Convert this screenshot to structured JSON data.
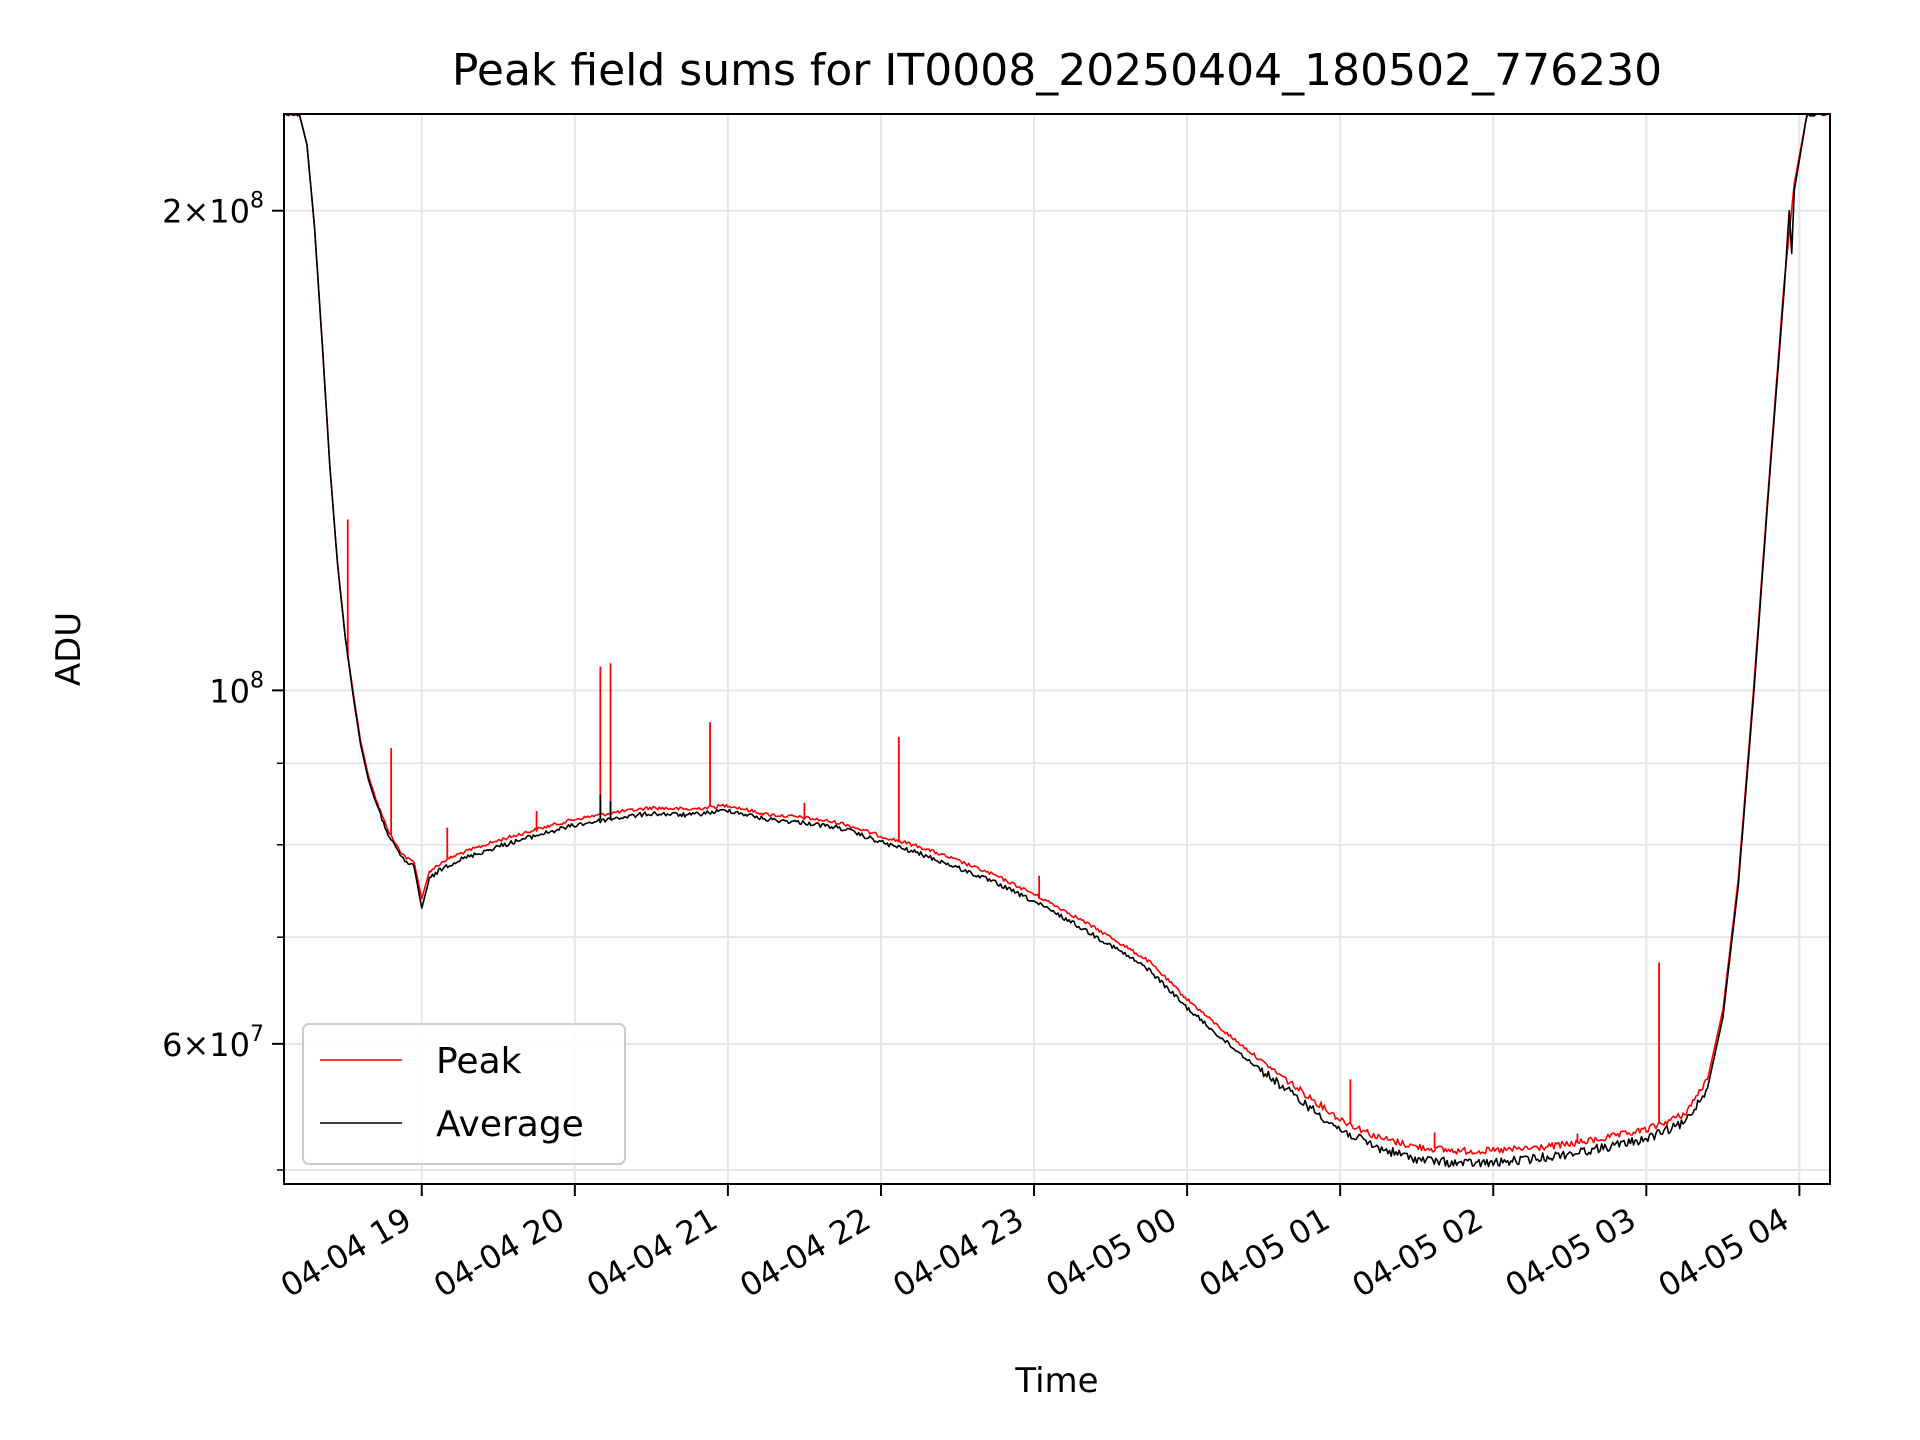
{
  "chart_data": {
    "type": "line",
    "title": "Peak field sums for IT0008_20250404_180502_776230",
    "xlabel": "Time",
    "ylabel": "ADU",
    "yscale": "log",
    "ylim": [
      49000000,
      230000000
    ],
    "xlim": [
      "2025-04-04 18:06",
      "2025-04-05 04:12"
    ],
    "grid": true,
    "legend_position": "lower-left",
    "x_ticks": [
      {
        "t": "2025-04-04 19:00",
        "label": "04-04 19"
      },
      {
        "t": "2025-04-04 20:00",
        "label": "04-04 20"
      },
      {
        "t": "2025-04-04 21:00",
        "label": "04-04 21"
      },
      {
        "t": "2025-04-04 22:00",
        "label": "04-04 22"
      },
      {
        "t": "2025-04-04 23:00",
        "label": "04-04 23"
      },
      {
        "t": "2025-04-05 00:00",
        "label": "04-05 00"
      },
      {
        "t": "2025-04-05 01:00",
        "label": "04-05 01"
      },
      {
        "t": "2025-04-05 02:00",
        "label": "04-05 02"
      },
      {
        "t": "2025-04-05 03:00",
        "label": "04-05 03"
      },
      {
        "t": "2025-04-05 04:00",
        "label": "04-05 04"
      }
    ],
    "y_ticks": [
      {
        "value": 60000000,
        "base": "6",
        "exp": "7"
      },
      {
        "value": 100000000,
        "base": "",
        "exp": "8"
      },
      {
        "value": 200000000,
        "base": "2",
        "exp": "8"
      }
    ],
    "y_minor_ticks": [
      50000000,
      70000000,
      80000000,
      90000000
    ],
    "series": [
      {
        "name": "Peak",
        "color": "#ff0000",
        "points": [
          [
            "2025-04-04 18:06",
            230000000
          ],
          [
            "2025-04-04 18:12",
            230000000
          ],
          [
            "2025-04-04 18:15",
            220000000
          ],
          [
            "2025-04-04 18:18",
            195000000
          ],
          [
            "2025-04-04 18:21",
            165000000
          ],
          [
            "2025-04-04 18:24",
            138000000
          ],
          [
            "2025-04-04 18:27",
            120000000
          ],
          [
            "2025-04-04 18:30",
            108000000
          ],
          [
            "2025-04-04 18:33",
            100000000
          ],
          [
            "2025-04-04 18:36",
            93000000
          ],
          [
            "2025-04-04 18:39",
            88500000
          ],
          [
            "2025-04-04 18:42",
            85500000
          ],
          [
            "2025-04-04 18:45",
            83000000
          ],
          [
            "2025-04-04 18:48",
            81000000
          ],
          [
            "2025-04-04 18:51",
            79500000
          ],
          [
            "2025-04-04 18:54",
            78500000
          ],
          [
            "2025-04-04 18:57",
            78000000
          ],
          [
            "2025-04-04 19:00",
            74000000
          ],
          [
            "2025-04-04 19:03",
            77000000
          ],
          [
            "2025-04-04 19:09",
            78200000
          ],
          [
            "2025-04-04 19:15",
            79000000
          ],
          [
            "2025-04-04 19:30",
            80500000
          ],
          [
            "2025-04-04 19:45",
            81800000
          ],
          [
            "2025-04-04 20:00",
            83000000
          ],
          [
            "2025-04-04 20:15",
            83800000
          ],
          [
            "2025-04-04 20:30",
            84400000
          ],
          [
            "2025-04-04 20:45",
            84200000
          ],
          [
            "2025-04-04 21:00",
            84700000
          ],
          [
            "2025-04-04 21:15",
            83600000
          ],
          [
            "2025-04-04 21:30",
            83200000
          ],
          [
            "2025-04-04 21:45",
            82500000
          ],
          [
            "2025-04-04 22:00",
            81000000
          ],
          [
            "2025-04-04 22:15",
            79800000
          ],
          [
            "2025-04-04 22:30",
            78200000
          ],
          [
            "2025-04-04 22:45",
            76500000
          ],
          [
            "2025-04-04 23:00",
            74500000
          ],
          [
            "2025-04-04 23:15",
            72300000
          ],
          [
            "2025-04-04 23:30",
            70000000
          ],
          [
            "2025-04-04 23:45",
            67600000
          ],
          [
            "2025-04-05 00:00",
            64000000
          ],
          [
            "2025-04-05 00:15",
            61000000
          ],
          [
            "2025-04-05 00:30",
            58400000
          ],
          [
            "2025-04-05 00:45",
            56000000
          ],
          [
            "2025-04-05 01:00",
            53800000
          ],
          [
            "2025-04-05 01:15",
            52400000
          ],
          [
            "2025-04-05 01:30",
            51700000
          ],
          [
            "2025-04-05 01:45",
            51400000
          ],
          [
            "2025-04-05 02:00",
            51400000
          ],
          [
            "2025-04-05 02:15",
            51600000
          ],
          [
            "2025-04-05 02:30",
            51900000
          ],
          [
            "2025-04-05 02:45",
            52400000
          ],
          [
            "2025-04-05 03:00",
            53000000
          ],
          [
            "2025-04-05 03:15",
            54200000
          ],
          [
            "2025-04-05 03:24",
            57000000
          ],
          [
            "2025-04-05 03:30",
            63000000
          ],
          [
            "2025-04-05 03:36",
            76000000
          ],
          [
            "2025-04-05 03:42",
            100000000
          ],
          [
            "2025-04-05 03:48",
            135000000
          ],
          [
            "2025-04-05 03:54",
            180000000
          ],
          [
            "2025-04-05 03:58",
            208000000
          ],
          [
            "2025-04-05 04:03",
            230000000
          ],
          [
            "2025-04-05 04:12",
            230000000
          ]
        ],
        "spikes": [
          [
            "2025-04-04 18:31",
            128000000
          ],
          [
            "2025-04-04 18:48",
            92000000
          ],
          [
            "2025-04-04 19:10",
            82000000
          ],
          [
            "2025-04-04 19:45",
            84000000
          ],
          [
            "2025-04-04 20:10",
            103500000
          ],
          [
            "2025-04-04 20:14",
            104000000
          ],
          [
            "2025-04-04 20:53",
            95500000
          ],
          [
            "2025-04-04 21:30",
            85000000
          ],
          [
            "2025-04-04 22:07",
            93500000
          ],
          [
            "2025-04-04 23:02",
            76500000
          ],
          [
            "2025-04-05 01:04",
            57000000
          ],
          [
            "2025-04-05 01:37",
            52800000
          ],
          [
            "2025-04-05 02:33",
            52700000
          ],
          [
            "2025-04-05 03:05",
            67500000
          ]
        ]
      },
      {
        "name": "Average",
        "color": "#000000",
        "points": [
          [
            "2025-04-04 18:06",
            230000000
          ],
          [
            "2025-04-04 18:12",
            230000000
          ],
          [
            "2025-04-04 18:15",
            220000000
          ],
          [
            "2025-04-04 18:18",
            195000000
          ],
          [
            "2025-04-04 18:21",
            165000000
          ],
          [
            "2025-04-04 18:24",
            138000000
          ],
          [
            "2025-04-04 18:27",
            120000000
          ],
          [
            "2025-04-04 18:30",
            108000000
          ],
          [
            "2025-04-04 18:33",
            99500000
          ],
          [
            "2025-04-04 18:36",
            92500000
          ],
          [
            "2025-04-04 18:39",
            88000000
          ],
          [
            "2025-04-04 18:42",
            85000000
          ],
          [
            "2025-04-04 18:45",
            82500000
          ],
          [
            "2025-04-04 18:48",
            80500000
          ],
          [
            "2025-04-04 18:51",
            79000000
          ],
          [
            "2025-04-04 18:54",
            78000000
          ],
          [
            "2025-04-04 18:57",
            77500000
          ],
          [
            "2025-04-04 19:00",
            73000000
          ],
          [
            "2025-04-04 19:03",
            76200000
          ],
          [
            "2025-04-04 19:09",
            77500000
          ],
          [
            "2025-04-04 19:15",
            78300000
          ],
          [
            "2025-04-04 19:30",
            79800000
          ],
          [
            "2025-04-04 19:45",
            81100000
          ],
          [
            "2025-04-04 20:00",
            82300000
          ],
          [
            "2025-04-04 20:15",
            83100000
          ],
          [
            "2025-04-04 20:30",
            83700000
          ],
          [
            "2025-04-04 20:45",
            83500000
          ],
          [
            "2025-04-04 21:00",
            84100000
          ],
          [
            "2025-04-04 21:15",
            83000000
          ],
          [
            "2025-04-04 21:30",
            82600000
          ],
          [
            "2025-04-04 21:45",
            81900000
          ],
          [
            "2025-04-04 22:00",
            80300000
          ],
          [
            "2025-04-04 22:15",
            79000000
          ],
          [
            "2025-04-04 22:30",
            77400000
          ],
          [
            "2025-04-04 22:45",
            75700000
          ],
          [
            "2025-04-04 23:00",
            73700000
          ],
          [
            "2025-04-04 23:15",
            71500000
          ],
          [
            "2025-04-04 23:30",
            69200000
          ],
          [
            "2025-04-04 23:45",
            66800000
          ],
          [
            "2025-04-05 00:00",
            63200000
          ],
          [
            "2025-04-05 00:15",
            60200000
          ],
          [
            "2025-04-05 00:30",
            57600000
          ],
          [
            "2025-04-05 00:45",
            55200000
          ],
          [
            "2025-04-05 01:00",
            53000000
          ],
          [
            "2025-04-05 01:15",
            51600000
          ],
          [
            "2025-04-05 01:30",
            50800000
          ],
          [
            "2025-04-05 01:45",
            50500000
          ],
          [
            "2025-04-05 02:00",
            50500000
          ],
          [
            "2025-04-05 02:15",
            50800000
          ],
          [
            "2025-04-05 02:30",
            51200000
          ],
          [
            "2025-04-05 02:45",
            51700000
          ],
          [
            "2025-04-05 03:00",
            52300000
          ],
          [
            "2025-04-05 03:15",
            53500000
          ],
          [
            "2025-04-05 03:24",
            56300000
          ],
          [
            "2025-04-05 03:30",
            62300000
          ],
          [
            "2025-04-05 03:36",
            75300000
          ],
          [
            "2025-04-05 03:42",
            99000000
          ],
          [
            "2025-04-05 03:48",
            134000000
          ],
          [
            "2025-04-05 03:54",
            178000000
          ],
          [
            "2025-04-05 03:56",
            200000000
          ],
          [
            "2025-04-05 03:57",
            188000000
          ],
          [
            "2025-04-05 03:58",
            206000000
          ],
          [
            "2025-04-05 04:03",
            230000000
          ],
          [
            "2025-04-05 04:12",
            230000000
          ]
        ],
        "spikes": [
          [
            "2025-04-04 20:10",
            86000000
          ],
          [
            "2025-04-04 20:14",
            85200000
          ]
        ]
      }
    ]
  }
}
